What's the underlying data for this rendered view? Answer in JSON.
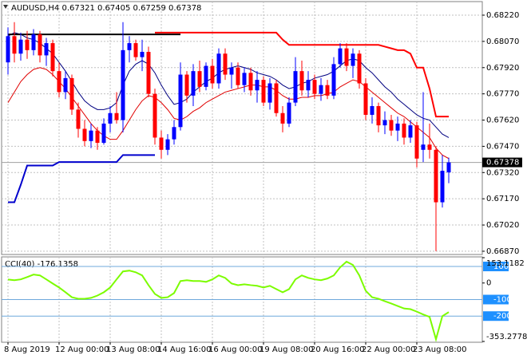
{
  "chart_data": [
    {
      "type": "candlestick",
      "title": "AUDUSD,H4  0.67321 0.67405 0.67259 0.67378",
      "categories": [
        "8 Aug 2019",
        null,
        null,
        null,
        null,
        null,
        null,
        null,
        "12 Aug 00:00",
        null,
        null,
        null,
        null,
        null,
        null,
        null,
        "13 Aug 08:00",
        null,
        null,
        null,
        null,
        null,
        null,
        null,
        "14 Aug 16:00",
        null,
        null,
        null,
        null,
        null,
        null,
        null,
        "16 Aug 00:00",
        null,
        null,
        null,
        null,
        null,
        null,
        null,
        "19 Aug 08:00",
        null,
        null,
        null,
        null,
        null,
        null,
        null,
        "20 Aug 16:00",
        null,
        null,
        null,
        null,
        null,
        null,
        null,
        "22 Aug 00:00",
        null,
        null,
        null,
        null,
        null,
        null,
        null,
        "23 Aug 08:00",
        null,
        null,
        null,
        null,
        null
      ],
      "open": [
        0.6795,
        0.681,
        0.68,
        0.6808,
        0.6802,
        0.6811,
        0.6799,
        0.6806,
        0.679,
        0.6778,
        0.6786,
        0.6768,
        0.6757,
        0.675,
        0.6756,
        0.6749,
        0.676,
        0.6766,
        0.6762,
        0.6802,
        0.6806,
        0.6798,
        0.6801,
        0.6777,
        0.6752,
        0.6745,
        0.6751,
        0.6758,
        0.6788,
        0.6776,
        0.679,
        0.6781,
        0.6793,
        0.6783,
        0.68,
        0.6788,
        0.6792,
        0.6782,
        0.6789,
        0.6779,
        0.6785,
        0.6772,
        0.6783,
        0.6766,
        0.676,
        0.6772,
        0.679,
        0.6779,
        0.6785,
        0.6777,
        0.6782,
        0.6776,
        0.6794,
        0.6803,
        0.6793,
        0.68,
        0.6783,
        0.6765,
        0.677,
        0.6759,
        0.6762,
        0.6756,
        0.676,
        0.6752,
        0.6759,
        0.6745,
        0.6748,
        0.6745,
        0.6715,
        0.67321
      ],
      "high": [
        0.6815,
        0.6818,
        0.6812,
        0.6813,
        0.6814,
        0.6813,
        0.6809,
        0.6808,
        0.6795,
        0.679,
        0.6788,
        0.6772,
        0.6762,
        0.676,
        0.6758,
        0.6763,
        0.677,
        0.6778,
        0.6818,
        0.681,
        0.6808,
        0.6808,
        0.6804,
        0.678,
        0.6756,
        0.6754,
        0.6762,
        0.6795,
        0.679,
        0.6794,
        0.6796,
        0.6795,
        0.6797,
        0.6803,
        0.6803,
        0.6795,
        0.6795,
        0.6792,
        0.6792,
        0.679,
        0.6787,
        0.6786,
        0.6785,
        0.677,
        0.6775,
        0.6798,
        0.6796,
        0.679,
        0.6788,
        0.6786,
        0.6785,
        0.6798,
        0.6806,
        0.6806,
        0.6803,
        0.6802,
        0.6786,
        0.6775,
        0.6772,
        0.6767,
        0.6765,
        0.6764,
        0.6763,
        0.6762,
        0.6761,
        0.6778,
        0.676,
        0.6747,
        0.6742,
        0.67405
      ],
      "low": [
        0.6788,
        0.6795,
        0.6796,
        0.6797,
        0.6799,
        0.6795,
        0.6793,
        0.6787,
        0.6775,
        0.6774,
        0.6765,
        0.6752,
        0.6747,
        0.6746,
        0.6745,
        0.6748,
        0.6755,
        0.676,
        0.6755,
        0.6795,
        0.6796,
        0.679,
        0.6775,
        0.6748,
        0.674,
        0.6742,
        0.6748,
        0.6756,
        0.6772,
        0.677,
        0.6778,
        0.6779,
        0.678,
        0.678,
        0.6785,
        0.678,
        0.678,
        0.6778,
        0.6776,
        0.6772,
        0.677,
        0.6768,
        0.6764,
        0.6755,
        0.6758,
        0.677,
        0.6776,
        0.6775,
        0.6774,
        0.6773,
        0.6774,
        0.6774,
        0.6792,
        0.679,
        0.6786,
        0.678,
        0.6762,
        0.676,
        0.6755,
        0.6754,
        0.6753,
        0.675,
        0.6748,
        0.6749,
        0.6735,
        0.6738,
        0.674,
        0.6687,
        0.6712,
        0.67259
      ],
      "close": [
        0.681,
        0.68,
        0.6808,
        0.6802,
        0.6811,
        0.6799,
        0.6806,
        0.679,
        0.6778,
        0.6786,
        0.6768,
        0.6757,
        0.675,
        0.6756,
        0.6749,
        0.676,
        0.6766,
        0.6762,
        0.6802,
        0.6806,
        0.6798,
        0.6801,
        0.6777,
        0.6752,
        0.6745,
        0.6751,
        0.6758,
        0.6788,
        0.6776,
        0.679,
        0.6781,
        0.6793,
        0.6783,
        0.68,
        0.6788,
        0.6792,
        0.6782,
        0.6789,
        0.6779,
        0.6785,
        0.6772,
        0.6783,
        0.6766,
        0.676,
        0.6772,
        0.679,
        0.6779,
        0.6785,
        0.6777,
        0.6782,
        0.6776,
        0.6794,
        0.6803,
        0.6793,
        0.68,
        0.6783,
        0.6765,
        0.677,
        0.6759,
        0.6762,
        0.6756,
        0.676,
        0.6752,
        0.6759,
        0.674,
        0.6748,
        0.6745,
        0.6715,
        0.6733,
        0.67378
      ],
      "up_color": "#0000ff",
      "down_color": "#ff0000",
      "series": [
        {
          "color": "#000080",
          "weight": "thin",
          "values": [
            0.681,
            0.6812,
            0.6811,
            0.6809,
            0.6808,
            0.6806,
            0.6803,
            0.68,
            0.6795,
            0.679,
            0.6784,
            0.6778,
            0.6773,
            0.677,
            0.6768,
            0.6768,
            0.6769,
            0.6772,
            0.6782,
            0.679,
            0.6794,
            0.6796,
            0.6794,
            0.6789,
            0.6782,
            0.6776,
            0.6771,
            0.6772,
            0.6774,
            0.6778,
            0.6781,
            0.6784,
            0.6786,
            0.6789,
            0.6791,
            0.6792,
            0.6793,
            0.6792,
            0.6791,
            0.6789,
            0.6788,
            0.6787,
            0.6785,
            0.6782,
            0.678,
            0.6781,
            0.6783,
            0.6784,
            0.6786,
            0.6787,
            0.6788,
            0.679,
            0.6793,
            0.6796,
            0.6797,
            0.6796,
            0.6792,
            0.6789,
            0.6785,
            0.6781,
            0.6778,
            0.6774,
            0.6771,
            0.6768,
            0.6765,
            0.6763,
            0.6762,
            0.6758,
            0.6754,
            0.6752
          ]
        },
        {
          "color": "#e00000",
          "weight": "thin",
          "values": [
            0.6772,
            0.6778,
            0.6784,
            0.6788,
            0.6791,
            0.6792,
            0.6791,
            0.6788,
            0.6784,
            0.678,
            0.6775,
            0.677,
            0.6765,
            0.676,
            0.6756,
            0.6753,
            0.6751,
            0.6751,
            0.6756,
            0.6762,
            0.6768,
            0.6773,
            0.6776,
            0.6775,
            0.6772,
            0.6768,
            0.6763,
            0.6762,
            0.6764,
            0.6767,
            0.6769,
            0.6772,
            0.6774,
            0.6776,
            0.6778,
            0.6779,
            0.678,
            0.6781,
            0.6782,
            0.6782,
            0.6781,
            0.6781,
            0.6779,
            0.6776,
            0.6774,
            0.6774,
            0.6775,
            0.6775,
            0.6776,
            0.6776,
            0.6777,
            0.6778,
            0.6781,
            0.6783,
            0.6785,
            0.6784,
            0.6781,
            0.6778,
            0.6775,
            0.6772,
            0.6769,
            0.6766,
            0.6764,
            0.6761,
            0.6758,
            0.6755,
            0.6752,
            0.6746,
            0.6742,
            0.674
          ]
        },
        {
          "color": "#ff0000",
          "weight": "thick",
          "values": [
            null,
            null,
            null,
            null,
            null,
            null,
            null,
            null,
            null,
            null,
            null,
            null,
            null,
            null,
            null,
            null,
            null,
            null,
            null,
            null,
            null,
            null,
            null,
            0.6812,
            0.6812,
            0.6812,
            0.6812,
            0.6812,
            0.6812,
            0.6812,
            0.6812,
            0.6812,
            0.6812,
            0.6812,
            0.6812,
            0.6812,
            0.6812,
            0.6812,
            0.6812,
            0.6812,
            0.6812,
            0.6812,
            0.6812,
            0.6808,
            0.6805,
            0.6805,
            0.6805,
            0.6805,
            0.6805,
            0.6805,
            0.6805,
            0.6805,
            0.6805,
            0.6805,
            0.6805,
            0.6805,
            0.6805,
            0.6805,
            0.6805,
            0.6804,
            0.6803,
            0.6802,
            0.6802,
            0.68,
            0.6792,
            0.6792,
            0.678,
            0.6764,
            0.6764,
            0.6764
          ]
        },
        {
          "color": "#000000",
          "weight": "thick",
          "values": [
            0.6811,
            0.6811,
            0.6811,
            0.6811,
            0.6811,
            0.6811,
            0.6811,
            0.6811,
            0.6811,
            0.6811,
            0.6811,
            0.6811,
            0.6811,
            0.6811,
            0.6811,
            0.6811,
            0.6811,
            0.6811,
            0.6811,
            0.6811,
            0.6811,
            0.6811,
            0.6811,
            0.6811,
            0.6811,
            0.6811,
            0.6811,
            0.6811,
            null,
            null,
            null,
            null,
            null,
            null,
            null,
            null,
            null,
            null,
            null,
            null,
            null,
            null,
            null,
            null,
            null,
            null,
            null,
            null,
            null,
            null,
            null,
            null,
            null,
            null,
            null,
            null,
            null,
            null,
            null,
            null,
            null,
            null,
            null,
            null,
            null,
            null,
            null,
            null,
            null,
            null
          ]
        },
        {
          "color": "#0000cd",
          "weight": "thick",
          "values": [
            0.6715,
            0.6715,
            0.6725,
            0.6736,
            0.6736,
            0.6736,
            0.6736,
            0.6736,
            0.6738,
            0.6738,
            0.6738,
            0.6738,
            0.6738,
            0.6738,
            0.6738,
            0.6738,
            0.6738,
            0.6738,
            0.6742,
            0.6742,
            0.6742,
            0.6742,
            0.6742,
            0.6742,
            null,
            null,
            null,
            null,
            null,
            null,
            null,
            null,
            null,
            null,
            null,
            null,
            null,
            null,
            null,
            null,
            null,
            null,
            null,
            null,
            null,
            null,
            null,
            null,
            null,
            null,
            null,
            null,
            null,
            null,
            null,
            null,
            null,
            null,
            null,
            null,
            null,
            null,
            null,
            null,
            null,
            null,
            null,
            null,
            null,
            null
          ]
        }
      ],
      "last_value": 0.67378,
      "ylim": [
        0.66856,
        0.68293
      ],
      "yticks": [
        {
          "value": 0.6822,
          "label": "0.68220"
        },
        {
          "value": 0.6807,
          "label": "0.68070"
        },
        {
          "value": 0.6792,
          "label": "0.67920"
        },
        {
          "value": 0.6777,
          "label": "0.67770"
        },
        {
          "value": 0.6762,
          "label": "0.67620"
        },
        {
          "value": 0.6747,
          "label": "0.67470"
        },
        {
          "value": 0.6732,
          "label": "0.67320"
        },
        {
          "value": 0.6717,
          "label": "0.67170"
        },
        {
          "value": 0.6702,
          "label": "0.67020"
        },
        {
          "value": 0.6687,
          "label": "0.66870"
        }
      ],
      "grid": true
    },
    {
      "type": "line",
      "title": "CCI(40) -176.1358",
      "series": [
        {
          "color": "#7cfc00",
          "values": [
            21,
            17,
            22,
            36,
            51,
            46,
            22,
            -3,
            -27,
            -56,
            -86,
            -95,
            -95,
            -90,
            -76,
            -56,
            -27,
            22,
            70,
            75,
            65,
            46,
            -13,
            -66,
            -90,
            -86,
            -61,
            12,
            17,
            12,
            12,
            7,
            22,
            46,
            31,
            -3,
            -13,
            -8,
            -13,
            -17,
            -27,
            -17,
            -37,
            -56,
            -37,
            22,
            46,
            31,
            22,
            17,
            27,
            46,
            95,
            129,
            109,
            46,
            -47,
            -86,
            -95,
            -110,
            -124,
            -139,
            -154,
            -158,
            -173,
            -190,
            -205,
            -340,
            -200,
            -176.1358
          ]
        }
      ],
      "ylim": [
        -353.2778,
        153.1182
      ],
      "yticks": [
        153.1182,
        0,
        -353.2778
      ],
      "levels": [
        100,
        -100,
        -200
      ],
      "level_color": "#1e90ff"
    }
  ]
}
